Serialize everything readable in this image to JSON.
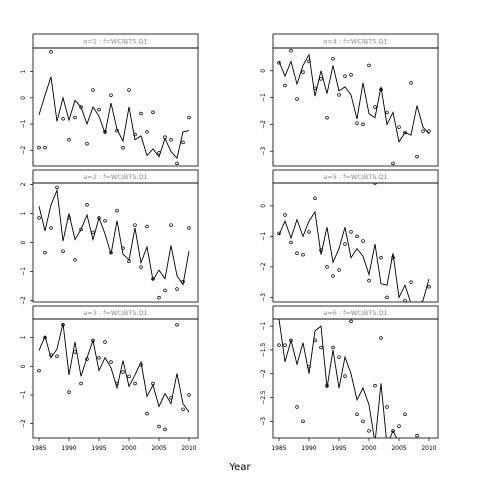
{
  "chart_data": {
    "type": "line",
    "xlabel": "Year",
    "ylabel": "",
    "line_color": "#000000",
    "point_color": "#000000",
    "strip_color": "#888888",
    "panels": [
      {
        "label": "a=1  :  f=WCIBTS.Q1",
        "xlim": [
          1984,
          2011.5
        ],
        "ylim": [
          -2.6,
          1.9
        ],
        "xticks": [
          1985,
          1990,
          1995,
          2000,
          2005,
          2010
        ],
        "yticks": [
          -2,
          -1,
          0,
          1
        ],
        "line_x": [
          1985,
          1986,
          1987,
          1988,
          1989,
          1990,
          1991,
          1992,
          1993,
          1994,
          1995,
          1996,
          1997,
          1998,
          1999,
          2000,
          2001,
          2002,
          2003,
          2004,
          2005,
          2006,
          2007,
          2008,
          2009,
          2010
        ],
        "line_y": [
          -0.65,
          0.1,
          0.8,
          -0.9,
          0.0,
          -0.85,
          -0.1,
          -0.35,
          -1.0,
          -0.35,
          -0.7,
          -1.35,
          -0.2,
          -1.2,
          -1.65,
          -0.35,
          -1.6,
          -1.45,
          -2.2,
          -1.95,
          -2.25,
          -1.55,
          -2.05,
          -2.3,
          -1.3,
          -1.25
        ],
        "points_x": [
          1985,
          1986,
          1987,
          1989,
          1990,
          1991,
          1992,
          1993,
          1994,
          1995,
          1996,
          1997,
          1998,
          1999,
          2000,
          2001,
          2002,
          2003,
          2004,
          2005,
          2006,
          2007,
          2008,
          2009,
          2010
        ],
        "points_y": [
          -1.9,
          -1.9,
          1.75,
          -0.8,
          -1.6,
          -0.75,
          -0.35,
          -1.75,
          0.3,
          -0.45,
          -1.3,
          0.1,
          -1.25,
          -1.9,
          0.3,
          -1.4,
          -0.6,
          -1.3,
          -0.55,
          -2.1,
          -1.5,
          -1.6,
          -2.5,
          -1.7,
          -0.75
        ]
      },
      {
        "label": "a=4  :  f=WCIBTS.Q1",
        "xlim": [
          1984,
          2011.5
        ],
        "ylim": [
          -3.55,
          0.85
        ],
        "xticks": [
          1985,
          1990,
          1995,
          2000,
          2005,
          2010
        ],
        "yticks": [
          -3,
          -2,
          -1,
          0
        ],
        "line_x": [
          1985,
          1986,
          1987,
          1988,
          1989,
          1990,
          1991,
          1992,
          1993,
          1994,
          1995,
          1996,
          1997,
          1998,
          1999,
          2000,
          2001,
          2002,
          2003,
          2004,
          2005,
          2006,
          2007,
          2008,
          2009,
          2010
        ],
        "line_y": [
          0.35,
          -0.2,
          0.35,
          -0.5,
          0.2,
          0.6,
          -0.95,
          0.0,
          -0.85,
          0.2,
          -0.75,
          -0.6,
          -0.9,
          -1.8,
          -0.45,
          -1.6,
          -1.75,
          -0.6,
          -2.0,
          -1.55,
          -2.65,
          -2.3,
          -2.4,
          -1.3,
          -2.1,
          -2.35
        ],
        "points_x": [
          1985,
          1986,
          1987,
          1988,
          1989,
          1990,
          1991,
          1992,
          1993,
          1994,
          1995,
          1996,
          1997,
          1998,
          1999,
          2000,
          2001,
          2002,
          2003,
          2004,
          2005,
          2006,
          2007,
          2008,
          2009,
          2010
        ],
        "points_y": [
          0.3,
          -0.55,
          0.75,
          -1.05,
          -0.05,
          0.35,
          -0.65,
          -0.3,
          -1.75,
          0.45,
          -0.9,
          -0.2,
          -0.15,
          -1.95,
          -2.0,
          0.2,
          -1.35,
          -0.7,
          -1.55,
          -3.45,
          -2.1,
          -2.3,
          -0.45,
          -3.2,
          -2.25,
          -2.25
        ]
      },
      {
        "label": "a=2  :  f=WCIBTS.Q1",
        "xlim": [
          1984,
          2011.5
        ],
        "ylim": [
          -2.05,
          2.05
        ],
        "xticks": [
          1985,
          1990,
          1995,
          2000,
          2005,
          2010
        ],
        "yticks": [
          -2,
          -1,
          0,
          1,
          2
        ],
        "line_x": [
          1985,
          1986,
          1987,
          1988,
          1989,
          1990,
          1991,
          1992,
          1993,
          1994,
          1995,
          1996,
          1997,
          1998,
          1999,
          2000,
          2001,
          2002,
          2003,
          2004,
          2005,
          2006,
          2007,
          2008,
          2009,
          2010
        ],
        "line_y": [
          1.25,
          0.4,
          1.3,
          1.8,
          0.05,
          1.0,
          0.1,
          0.45,
          0.95,
          0.1,
          0.85,
          0.3,
          -0.4,
          0.75,
          -0.4,
          -0.6,
          0.5,
          -0.7,
          -0.15,
          -1.3,
          -0.95,
          -1.25,
          -0.1,
          -1.15,
          -1.45,
          -0.3
        ],
        "points_x": [
          1985,
          1986,
          1987,
          1988,
          1989,
          1990,
          1991,
          1992,
          1993,
          1994,
          1995,
          1996,
          1997,
          1998,
          1999,
          2000,
          2001,
          2002,
          2003,
          2004,
          2005,
          2006,
          2007,
          2008,
          2009,
          2010
        ],
        "points_y": [
          0.85,
          -0.35,
          0.5,
          1.9,
          -0.3,
          0.85,
          -0.6,
          0.45,
          1.3,
          0.35,
          0.85,
          0.75,
          -0.35,
          1.1,
          -0.2,
          -0.65,
          0.6,
          -0.85,
          0.55,
          -1.25,
          -1.9,
          -1.65,
          0.6,
          -1.6,
          -1.35,
          0.5
        ]
      },
      {
        "label": "a=5  :  f=WCIBTS.Q1",
        "xlim": [
          1984,
          2011.5
        ],
        "ylim": [
          -3.15,
          0.75
        ],
        "xticks": [
          1985,
          1990,
          1995,
          2000,
          2005,
          2010
        ],
        "yticks": [
          -3,
          -2,
          -1,
          0
        ],
        "line_x": [
          1985,
          1986,
          1987,
          1988,
          1989,
          1990,
          1991,
          1992,
          1993,
          1994,
          1995,
          1996,
          1997,
          1998,
          1999,
          2000,
          2001,
          2002,
          2003,
          2004,
          2005,
          2006,
          2007,
          2008,
          2009,
          2010
        ],
        "line_y": [
          -0.95,
          -0.5,
          -1.05,
          -0.45,
          -1.0,
          -0.5,
          -0.2,
          -1.6,
          -0.7,
          -1.85,
          -1.4,
          -0.7,
          -1.7,
          -1.4,
          -1.65,
          -2.25,
          -1.25,
          -2.55,
          -2.6,
          -1.55,
          -3.0,
          -2.6,
          -3.2,
          -3.3,
          -3.1,
          -2.4
        ],
        "points_x": [
          1985,
          1986,
          1987,
          1988,
          1989,
          1990,
          1991,
          1992,
          1993,
          1994,
          1995,
          1996,
          1997,
          1998,
          1999,
          2000,
          2001,
          2002,
          2003,
          2004,
          2005,
          2006,
          2007,
          2008,
          2009,
          2010
        ],
        "points_y": [
          -0.9,
          -0.3,
          -1.2,
          -1.55,
          -1.6,
          -0.85,
          0.25,
          -1.45,
          -2.0,
          -2.3,
          -2.1,
          -1.25,
          -0.85,
          -1.0,
          -1.15,
          -2.45,
          0.75,
          -1.7,
          -3.0,
          -1.7,
          -3.5,
          -3.1,
          -2.5,
          -3.2,
          -3.3,
          -2.65
        ]
      },
      {
        "label": "a=3  :  f=WCIBTS.Q1",
        "xlim": [
          1984,
          2011.5
        ],
        "ylim": [
          -2.5,
          1.65
        ],
        "xticks": [
          1985,
          1990,
          1995,
          2000,
          2005,
          2010
        ],
        "yticks": [
          -2,
          -1,
          0,
          1
        ],
        "line_x": [
          1985,
          1986,
          1987,
          1988,
          1989,
          1990,
          1991,
          1992,
          1993,
          1994,
          1995,
          1996,
          1997,
          1998,
          1999,
          2000,
          2001,
          2002,
          2003,
          2004,
          2005,
          2006,
          2007,
          2008,
          2009,
          2010
        ],
        "line_y": [
          0.55,
          1.05,
          0.3,
          0.6,
          1.5,
          -0.3,
          0.85,
          -0.35,
          0.3,
          0.9,
          -0.15,
          0.3,
          -0.05,
          -0.75,
          0.2,
          -0.7,
          -0.3,
          0.15,
          -1.05,
          -0.65,
          -1.4,
          -0.95,
          -1.3,
          -0.25,
          -1.3,
          -1.6
        ],
        "points_x": [
          1985,
          1986,
          1987,
          1988,
          1989,
          1990,
          1991,
          1992,
          1993,
          1994,
          1995,
          1996,
          1997,
          1998,
          1999,
          2000,
          2001,
          2002,
          2003,
          2004,
          2005,
          2006,
          2007,
          2008,
          2009,
          2010
        ],
        "points_y": [
          -0.15,
          1.0,
          0.4,
          0.35,
          1.45,
          -0.9,
          0.5,
          -0.6,
          0.25,
          0.9,
          0.3,
          0.85,
          0.15,
          -0.6,
          -0.2,
          -0.35,
          -0.6,
          0.05,
          -1.65,
          -0.6,
          -2.1,
          -2.2,
          -1.1,
          1.45,
          -1.5,
          -1.0
        ]
      },
      {
        "label": "a=6  :  f=WCIBTS.Q1",
        "xlim": [
          1984,
          2011.5
        ],
        "ylim": [
          -3.35,
          -0.85
        ],
        "xticks": [
          1985,
          1990,
          1995,
          2000,
          2005,
          2010
        ],
        "yticks": [
          -3,
          -2.5,
          -2,
          -1.5,
          -1
        ],
        "line_x": [
          1985,
          1986,
          1987,
          1988,
          1989,
          1990,
          1991,
          1992,
          1993,
          1994,
          1995,
          1996,
          1997,
          1998,
          1999,
          2000,
          2001,
          2002,
          2003,
          2004,
          2005,
          2006,
          2007,
          2008,
          2009,
          2010
        ],
        "line_y": [
          -0.85,
          -1.75,
          -1.3,
          -1.8,
          -1.35,
          -2.0,
          -1.1,
          -1.0,
          -2.3,
          -1.5,
          -2.3,
          -1.65,
          -2.0,
          -2.55,
          -2.3,
          -2.65,
          -3.45,
          -2.2,
          -3.5,
          -3.2,
          -3.45,
          -3.6,
          -3.55,
          -3.5,
          -3.5,
          -3.4
        ],
        "points_x": [
          1985,
          1986,
          1987,
          1988,
          1989,
          1990,
          1991,
          1992,
          1993,
          1994,
          1995,
          1996,
          1997,
          1998,
          1999,
          2000,
          2001,
          2002,
          2003,
          2004,
          2005,
          2006,
          2007,
          2008,
          2009,
          2010
        ],
        "points_y": [
          -1.4,
          -1.4,
          -1.3,
          -2.7,
          -3.0,
          -1.85,
          -1.3,
          -1.45,
          -2.25,
          -1.45,
          -1.65,
          -2.05,
          -0.9,
          -2.85,
          -3.0,
          -3.2,
          -2.25,
          -1.25,
          -2.7,
          -3.2,
          -3.1,
          -2.85,
          -3.45,
          -3.3,
          -3.55,
          -3.5
        ]
      }
    ]
  }
}
